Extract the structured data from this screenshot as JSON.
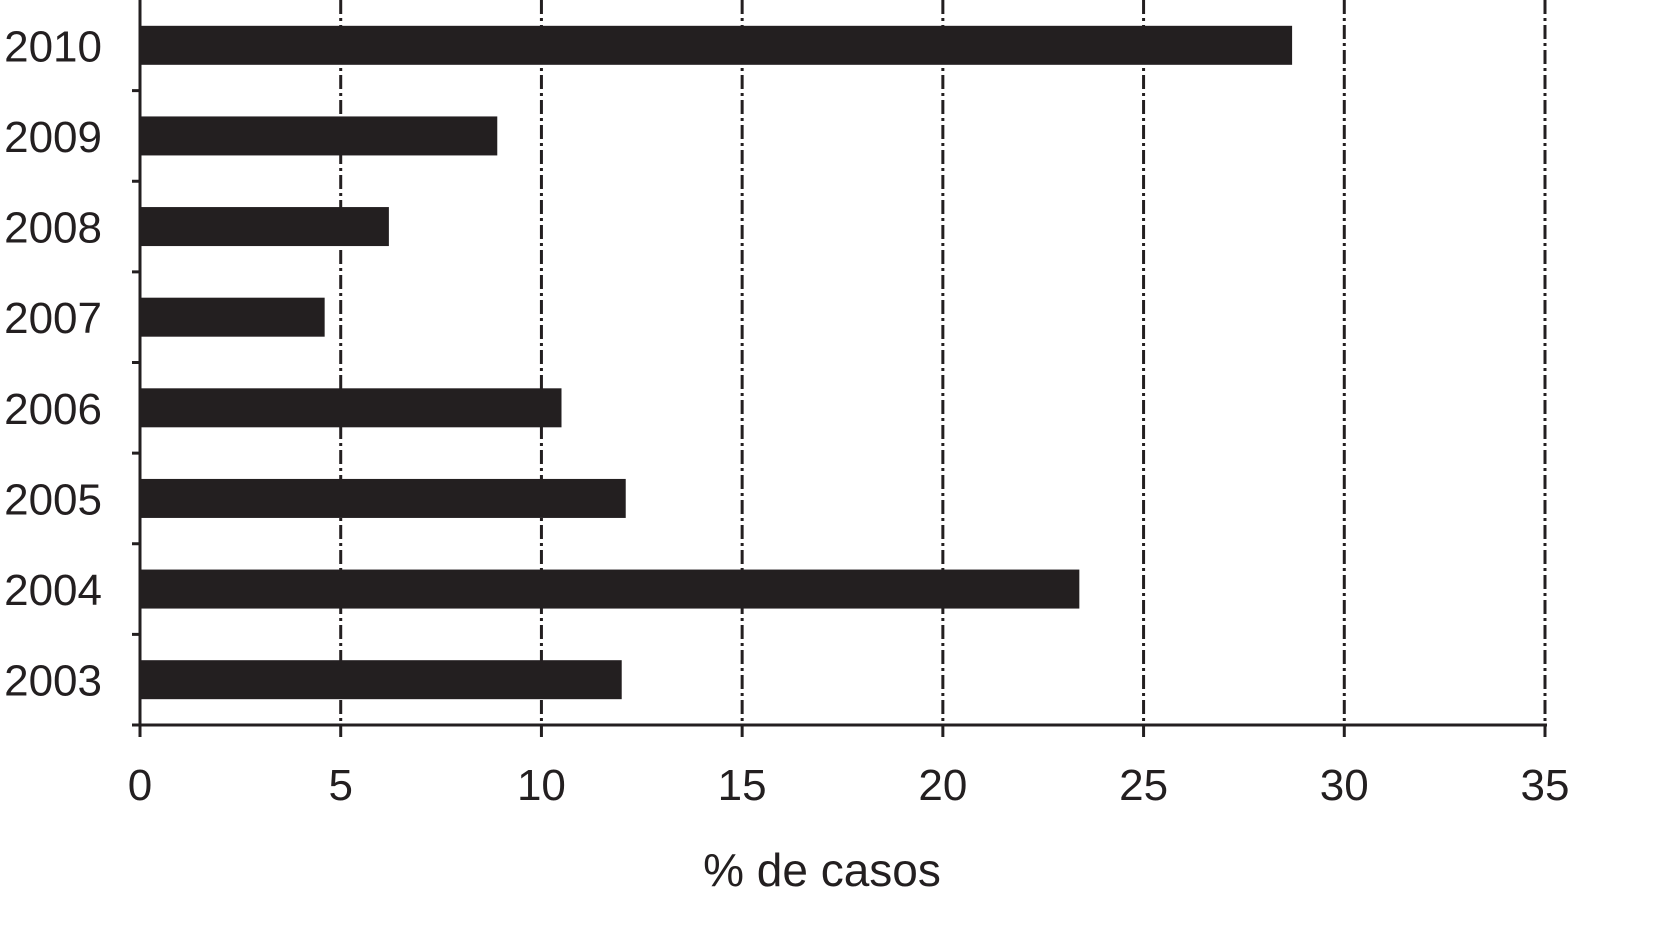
{
  "chart_data": {
    "type": "bar",
    "orientation": "horizontal",
    "title": "",
    "xlabel": "% de casos",
    "ylabel": "",
    "categories": [
      "2010",
      "2009",
      "2008",
      "2007",
      "2006",
      "2005",
      "2004",
      "2003"
    ],
    "values": [
      28.7,
      8.9,
      6.2,
      4.6,
      10.5,
      12.1,
      23.4,
      12.0
    ],
    "xlim": [
      0,
      35
    ],
    "xticks": [
      "0",
      "5",
      "10",
      "15",
      "20",
      "25",
      "30",
      "35"
    ],
    "grid": "vertical dash-dot",
    "legend": "none",
    "bar_color": "#231f20"
  }
}
